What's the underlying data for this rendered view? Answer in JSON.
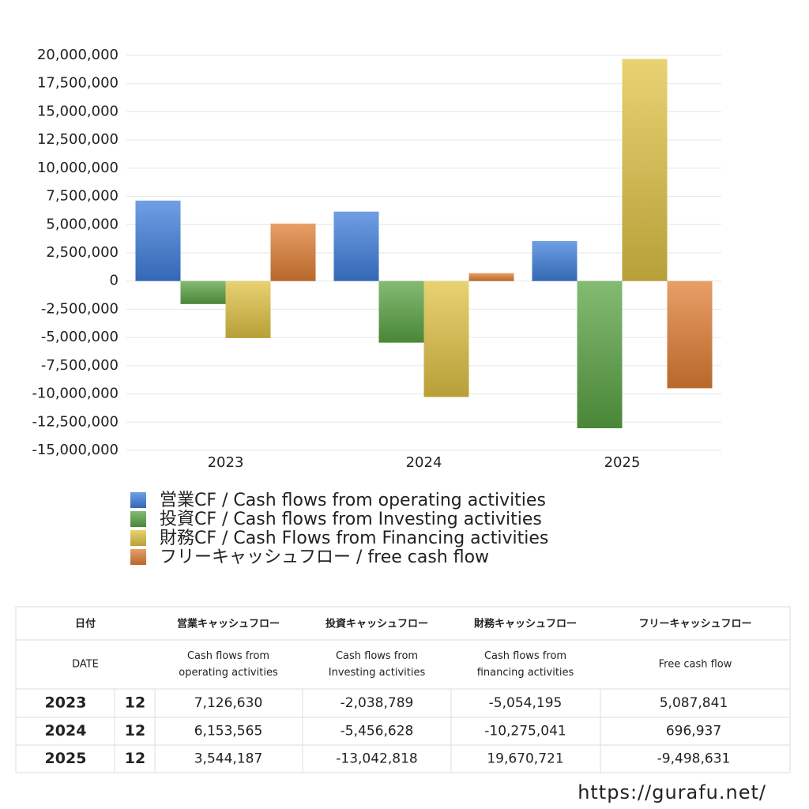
{
  "chart_data": {
    "type": "bar",
    "categories": [
      "2023",
      "2024",
      "2025"
    ],
    "series": [
      {
        "name": "営業CF / Cash flows from operating activities",
        "color": "#3f7fdc",
        "values": [
          7126630,
          6153565,
          3544187
        ]
      },
      {
        "name": "投資CF / Cash flows from Investing activities",
        "color": "#5aa444",
        "values": [
          -2038789,
          -5456628,
          -13042818
        ]
      },
      {
        "name": "財務CF / Cash Flows from Financing activities",
        "color": "#e0c343",
        "values": [
          -5054195,
          -10275041,
          19670721
        ]
      },
      {
        "name": "フリーキャッシュフロー / free cash flow",
        "color": "#e07f33",
        "values": [
          5087841,
          696937,
          -9498631
        ]
      }
    ],
    "ylim": [
      -15000000,
      20000000
    ],
    "yticks": [
      {
        "value": -15000000,
        "label": "-15,000,000"
      },
      {
        "value": -12500000,
        "label": "-12,500,000"
      },
      {
        "value": -10000000,
        "label": "-10,000,000"
      },
      {
        "value": -7500000,
        "label": "-7,500,000"
      },
      {
        "value": -5000000,
        "label": "-5,000,000"
      },
      {
        "value": -2500000,
        "label": "-2,500,000"
      },
      0,
      {
        "value": 2500000,
        "label": "2,500,000"
      },
      {
        "value": 5000000,
        "label": "5,000,000"
      },
      {
        "value": 7500000,
        "label": "7,500,000"
      },
      {
        "value": 10000000,
        "label": "10,000,000"
      },
      {
        "value": 12500000,
        "label": "12,500,000"
      },
      {
        "value": 15000000,
        "label": "15,000,000"
      },
      {
        "value": 17500000,
        "label": "17,500,000"
      },
      {
        "value": 20000000,
        "label": "20,000,000"
      }
    ],
    "grid": true
  },
  "table": {
    "header": [
      "日付",
      "営業キャッシュフロー",
      "投資キャッシュフロー",
      "財務キャッシュフロー",
      "フリーキャッシュフロー"
    ],
    "subheader": [
      [
        "DATE"
      ],
      [
        "Cash flows from",
        "operating activities"
      ],
      [
        "Cash flows from",
        "Investing activities"
      ],
      [
        "Cash flows from",
        "financing activities"
      ],
      [
        "Free cash flow"
      ]
    ],
    "rows": [
      [
        "2023",
        "12",
        "7,126,630",
        "-2,038,789",
        "-5,054,195",
        "5,087,841"
      ],
      [
        "2024",
        "12",
        "6,153,565",
        "-5,456,628",
        "-10,275,041",
        "696,937"
      ],
      [
        "2025",
        "12",
        "3,544,187",
        "-13,042,818",
        "19,670,721",
        "-9,498,631"
      ]
    ]
  },
  "footer": {
    "url": "https://gurafu.net/"
  }
}
